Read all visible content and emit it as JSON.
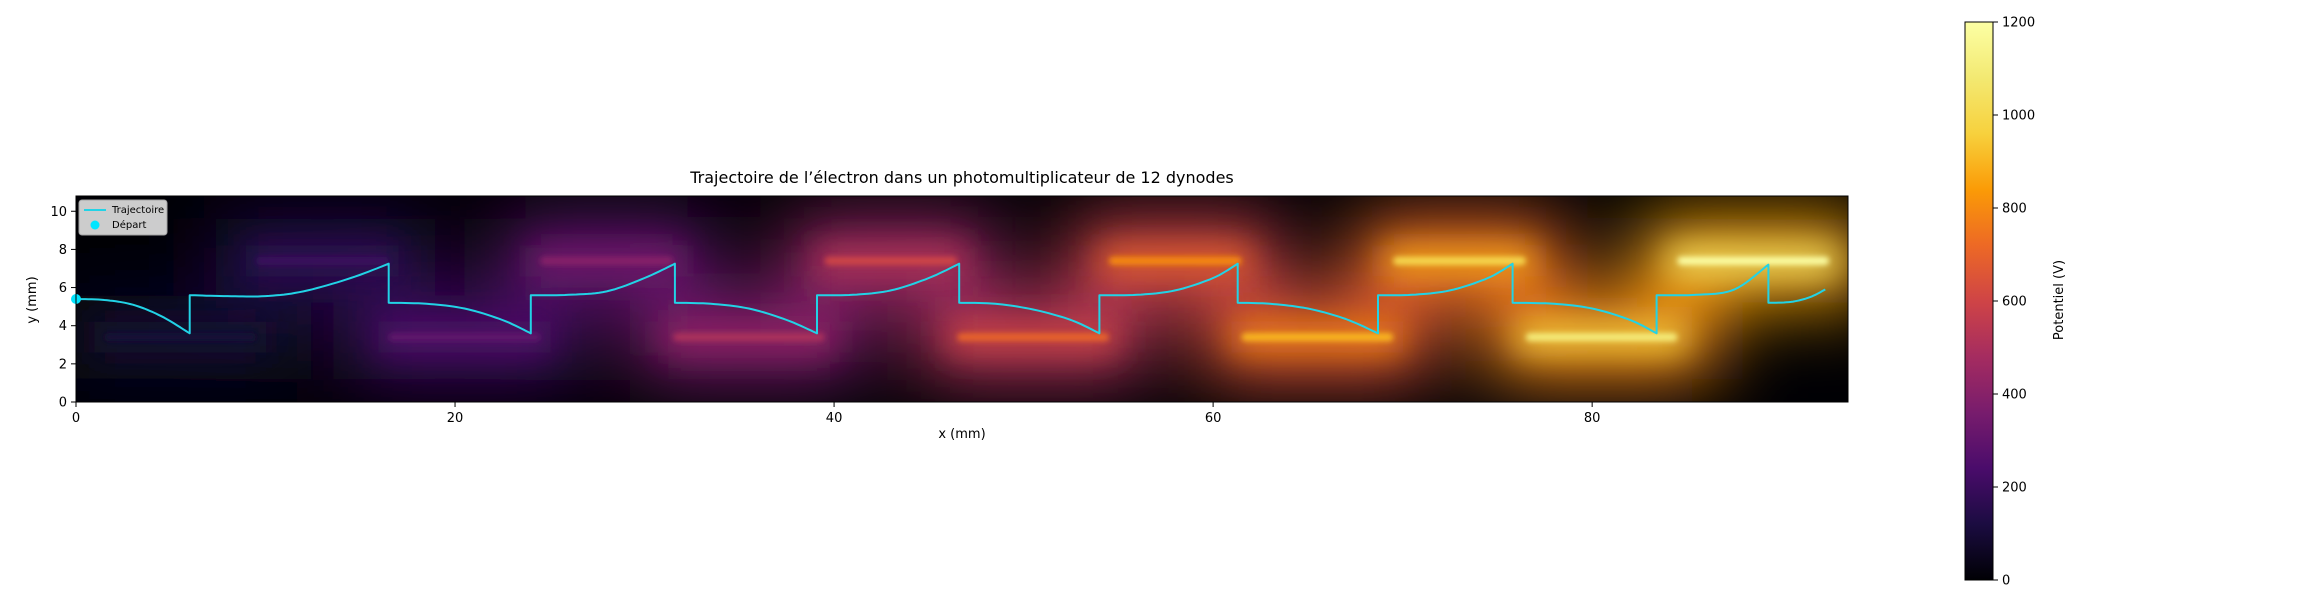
{
  "chart_data": [
    {
      "type": "heatmap",
      "title": "Trajectoire de l’électron dans un photomultiplicateur de 12 dynodes",
      "xlabel": "x (mm)",
      "ylabel": "y (mm)",
      "xlim": [
        0,
        93.5
      ],
      "ylim": [
        0,
        10.8
      ],
      "xticks": [
        0,
        20,
        40,
        60,
        80
      ],
      "yticks": [
        0,
        2,
        4,
        6,
        8,
        10
      ],
      "colormap": "inferno",
      "colorbar": {
        "label": "Potentiel (V)",
        "range": [
          0,
          1200
        ],
        "ticks": [
          0,
          200,
          400,
          600,
          800,
          1000,
          1200
        ]
      },
      "grid": false,
      "legend_position": "upper-left",
      "dynodes": [
        {
          "x": [
            1.5,
            9.5
          ],
          "y": 3.4,
          "potential": 100
        },
        {
          "x": [
            9.5,
            16.5
          ],
          "y": 7.4,
          "potential": 200
        },
        {
          "x": [
            16.5,
            24.5
          ],
          "y": 3.4,
          "potential": 300
        },
        {
          "x": [
            24.5,
            31.5
          ],
          "y": 7.4,
          "potential": 400
        },
        {
          "x": [
            31.5,
            39.5
          ],
          "y": 3.4,
          "potential": 500
        },
        {
          "x": [
            39.5,
            46.5
          ],
          "y": 7.4,
          "potential": 600
        },
        {
          "x": [
            46.5,
            54.5
          ],
          "y": 3.4,
          "potential": 700
        },
        {
          "x": [
            54.5,
            61.5
          ],
          "y": 7.4,
          "potential": 800
        },
        {
          "x": [
            61.5,
            69.5
          ],
          "y": 3.4,
          "potential": 900
        },
        {
          "x": [
            69.5,
            76.5
          ],
          "y": 7.4,
          "potential": 1000
        },
        {
          "x": [
            76.5,
            84.5
          ],
          "y": 3.4,
          "potential": 1100
        },
        {
          "x": [
            84.5,
            92.5
          ],
          "y": 7.4,
          "potential": 1200
        }
      ],
      "series": [
        {
          "name": "Trajectoire",
          "color": "#22d3e6",
          "segments": [
            [
              [
                0,
                5.4
              ],
              [
                1.5,
                5.35
              ],
              [
                3,
                5.1
              ],
              [
                4.5,
                4.5
              ],
              [
                6,
                3.6
              ]
            ],
            [
              [
                6,
                5.6
              ],
              [
                8,
                5.55
              ],
              [
                10,
                5.55
              ],
              [
                12,
                5.8
              ],
              [
                14.5,
                6.5
              ],
              [
                16.5,
                7.25
              ]
            ],
            [
              [
                16.5,
                5.2
              ],
              [
                18.5,
                5.15
              ],
              [
                20.5,
                4.9
              ],
              [
                22.5,
                4.3
              ],
              [
                24,
                3.6
              ]
            ],
            [
              [
                24,
                5.6
              ],
              [
                26,
                5.62
              ],
              [
                28,
                5.8
              ],
              [
                30,
                6.5
              ],
              [
                31.6,
                7.25
              ]
            ],
            [
              [
                31.6,
                5.2
              ],
              [
                33.5,
                5.15
              ],
              [
                35.5,
                4.9
              ],
              [
                37.5,
                4.3
              ],
              [
                39.1,
                3.6
              ]
            ],
            [
              [
                39.1,
                5.6
              ],
              [
                41,
                5.62
              ],
              [
                43,
                5.85
              ],
              [
                45,
                6.5
              ],
              [
                46.6,
                7.25
              ]
            ],
            [
              [
                46.6,
                5.2
              ],
              [
                48.5,
                5.15
              ],
              [
                50.5,
                4.85
              ],
              [
                52.5,
                4.3
              ],
              [
                54,
                3.6
              ]
            ],
            [
              [
                54,
                5.6
              ],
              [
                56,
                5.62
              ],
              [
                58,
                5.85
              ],
              [
                60,
                6.5
              ],
              [
                61.3,
                7.25
              ]
            ],
            [
              [
                61.3,
                5.2
              ],
              [
                63,
                5.15
              ],
              [
                65,
                4.9
              ],
              [
                67,
                4.35
              ],
              [
                68.7,
                3.6
              ]
            ],
            [
              [
                68.7,
                5.6
              ],
              [
                70.5,
                5.62
              ],
              [
                72.5,
                5.85
              ],
              [
                74.5,
                6.5
              ],
              [
                75.8,
                7.25
              ]
            ],
            [
              [
                75.8,
                5.2
              ],
              [
                78,
                5.15
              ],
              [
                80,
                4.9
              ],
              [
                82,
                4.3
              ],
              [
                83.4,
                3.6
              ]
            ],
            [
              [
                83.4,
                5.6
              ],
              [
                85.5,
                5.62
              ],
              [
                87.5,
                5.9
              ],
              [
                89.3,
                7.2
              ]
            ],
            [
              [
                89.3,
                5.2
              ],
              [
                90.5,
                5.25
              ],
              [
                91.5,
                5.5
              ],
              [
                92.3,
                5.9
              ]
            ]
          ]
        },
        {
          "name": "Départ",
          "color": "#00e5ff",
          "points": [
            [
              0,
              5.4
            ]
          ]
        }
      ]
    }
  ]
}
